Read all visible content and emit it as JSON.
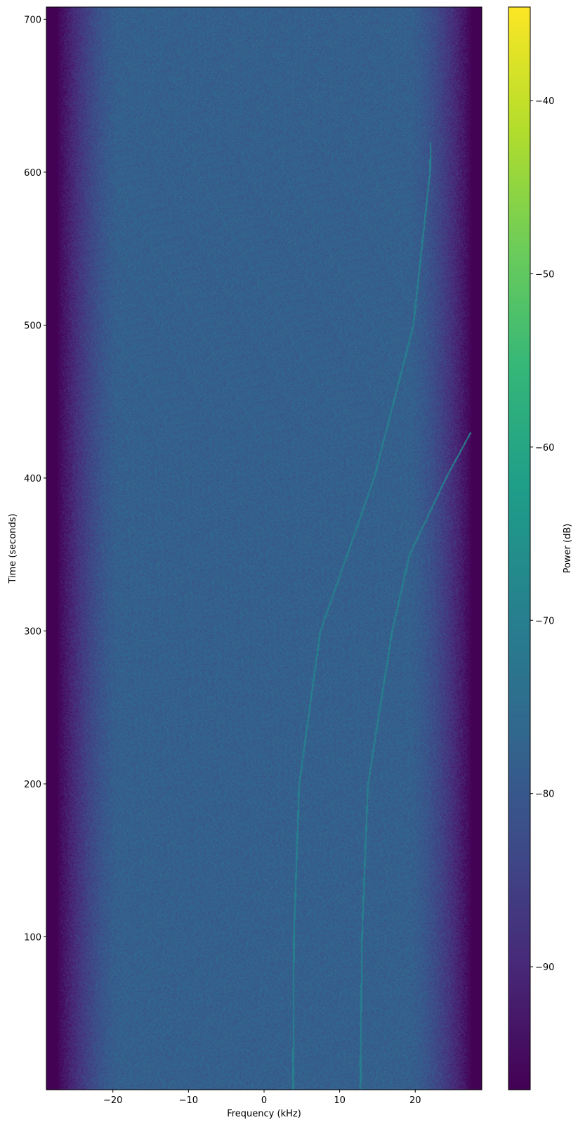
{
  "chart_data": {
    "type": "heatmap",
    "subtype": "spectrogram",
    "title": "",
    "xlabel": "Frequency (kHz)",
    "ylabel": "Time (seconds)",
    "colorbar_label": "Power (dB)",
    "colormap": "viridis",
    "xlim": [
      -28.8,
      28.8
    ],
    "ylim": [
      0,
      708
    ],
    "clim": [
      -97.1,
      -34.6
    ],
    "xticks": [
      -20,
      -10,
      0,
      10,
      20
    ],
    "xtick_labels": [
      "−20",
      "−10",
      "0",
      "10",
      "20"
    ],
    "yticks": [
      100,
      200,
      300,
      400,
      500,
      600,
      700
    ],
    "ytick_labels": [
      "100",
      "200",
      "300",
      "400",
      "500",
      "600",
      "700"
    ],
    "cticks": [
      -40,
      -50,
      -60,
      -70,
      -80,
      -90
    ],
    "ctick_labels": [
      "−40",
      "−50",
      "−60",
      "−70",
      "−80",
      "−90"
    ],
    "noise_floor_db": -78,
    "passband_edge_khz": [
      -24,
      24
    ],
    "stopband_db": -97,
    "traces": [
      {
        "time_s": [
          0,
          100,
          200,
          300,
          400,
          500,
          600,
          620
        ],
        "freq_khz": [
          3.8,
          3.9,
          4.6,
          7.4,
          14.5,
          19.7,
          21.9,
          22.0
        ],
        "power_db": -70
      },
      {
        "time_s": [
          0,
          100,
          200,
          300,
          350,
          400,
          430
        ],
        "freq_khz": [
          12.7,
          12.9,
          13.7,
          16.9,
          19.2,
          24.0,
          27.3
        ],
        "power_db": -70
      }
    ]
  }
}
